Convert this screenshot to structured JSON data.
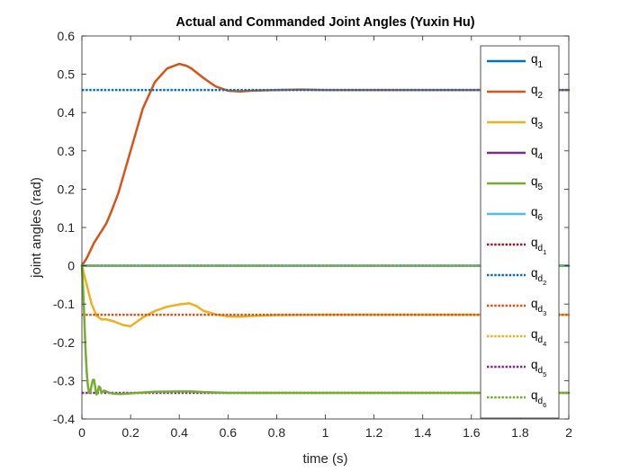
{
  "chart_data": {
    "type": "line",
    "title": "Actual and Commanded Joint Angles (Yuxin Hu)",
    "xlabel": "time (s)",
    "ylabel": "joint angles (rad)",
    "xlim": [
      0,
      2
    ],
    "ylim": [
      -0.4,
      0.6
    ],
    "xticks": [
      0,
      0.2,
      0.4,
      0.6,
      0.8,
      1,
      1.2,
      1.4,
      1.6,
      1.8,
      2
    ],
    "xtick_labels": [
      "0",
      "0.2",
      "0.4",
      "0.6",
      "0.8",
      "1",
      "1.2",
      "1.4",
      "1.6",
      "1.8",
      "2"
    ],
    "yticks": [
      -0.4,
      -0.3,
      -0.2,
      -0.1,
      0,
      0.1,
      0.2,
      0.3,
      0.4,
      0.5,
      0.6
    ],
    "ytick_labels": [
      "-0.4",
      "-0.3",
      "-0.2",
      "-0.1",
      "0",
      "0.1",
      "0.2",
      "0.3",
      "0.4",
      "0.5",
      "0.6"
    ],
    "grid": false,
    "legend_position": "top-right",
    "series": [
      {
        "name": "q1",
        "label": "q",
        "sub": "1",
        "subsub": "",
        "color": "#0072BD",
        "style": "solid",
        "x": [
          0,
          2
        ],
        "y": [
          0,
          0
        ]
      },
      {
        "name": "q2",
        "label": "q",
        "sub": "2",
        "subsub": "",
        "color": "#D95319",
        "style": "solid",
        "x": [
          0,
          0.02,
          0.05,
          0.08,
          0.1,
          0.12,
          0.15,
          0.2,
          0.25,
          0.3,
          0.35,
          0.4,
          0.43,
          0.45,
          0.5,
          0.55,
          0.6,
          0.65,
          0.7,
          0.8,
          0.9,
          1.0,
          1.2,
          1.5,
          2.0
        ],
        "y": [
          0,
          0.02,
          0.06,
          0.09,
          0.11,
          0.14,
          0.19,
          0.3,
          0.41,
          0.48,
          0.515,
          0.527,
          0.522,
          0.515,
          0.49,
          0.468,
          0.457,
          0.455,
          0.457,
          0.459,
          0.46,
          0.459,
          0.459,
          0.459,
          0.459
        ]
      },
      {
        "name": "q3",
        "label": "q",
        "sub": "3",
        "subsub": "",
        "color": "#EDB120",
        "style": "solid",
        "x": [
          0,
          0.02,
          0.04,
          0.06,
          0.08,
          0.1,
          0.13,
          0.17,
          0.2,
          0.25,
          0.3,
          0.35,
          0.4,
          0.44,
          0.47,
          0.5,
          0.55,
          0.6,
          0.65,
          0.7,
          0.8,
          1.0,
          1.5,
          2.0
        ],
        "y": [
          0,
          -0.05,
          -0.1,
          -0.13,
          -0.14,
          -0.14,
          -0.145,
          -0.155,
          -0.158,
          -0.135,
          -0.118,
          -0.107,
          -0.101,
          -0.098,
          -0.105,
          -0.118,
          -0.127,
          -0.132,
          -0.133,
          -0.131,
          -0.129,
          -0.128,
          -0.128,
          -0.128
        ]
      },
      {
        "name": "q4",
        "label": "q",
        "sub": "4",
        "subsub": "",
        "color": "#7E2F8E",
        "style": "solid",
        "x": [
          0,
          2
        ],
        "y": [
          0,
          0
        ]
      },
      {
        "name": "q5",
        "label": "q",
        "sub": "5",
        "subsub": "",
        "color": "#77AC30",
        "style": "solid",
        "x": [
          0,
          0.005,
          0.01,
          0.015,
          0.02,
          0.025,
          0.03,
          0.035,
          0.04,
          0.045,
          0.05,
          0.055,
          0.06,
          0.065,
          0.07,
          0.075,
          0.08,
          0.09,
          0.1,
          0.11,
          0.13,
          0.16,
          0.2,
          0.25,
          0.3,
          0.4,
          0.45,
          0.5,
          0.6,
          1.0,
          2.0
        ],
        "y": [
          0,
          -0.06,
          -0.14,
          -0.22,
          -0.28,
          -0.315,
          -0.332,
          -0.328,
          -0.312,
          -0.298,
          -0.298,
          -0.318,
          -0.336,
          -0.33,
          -0.315,
          -0.318,
          -0.332,
          -0.326,
          -0.328,
          -0.331,
          -0.334,
          -0.335,
          -0.333,
          -0.331,
          -0.329,
          -0.328,
          -0.328,
          -0.33,
          -0.332,
          -0.332,
          -0.332
        ]
      },
      {
        "name": "q6",
        "label": "q",
        "sub": "6",
        "subsub": "",
        "color": "#4DBEEE",
        "style": "solid",
        "x": [
          0,
          2
        ],
        "y": [
          0,
          0
        ]
      },
      {
        "name": "qd1",
        "label": "q",
        "sub": "d",
        "subsub": "1",
        "color": "#A2142F",
        "style": "dotted",
        "x": [
          0,
          2
        ],
        "y": [
          0,
          0
        ]
      },
      {
        "name": "qd2",
        "label": "q",
        "sub": "d",
        "subsub": "2",
        "color": "#0072BD",
        "style": "dotted",
        "x": [
          0,
          2
        ],
        "y": [
          0.459,
          0.459
        ]
      },
      {
        "name": "qd3",
        "label": "q",
        "sub": "d",
        "subsub": "3",
        "color": "#D95319",
        "style": "dotted",
        "x": [
          0,
          2
        ],
        "y": [
          -0.128,
          -0.128
        ]
      },
      {
        "name": "qd4",
        "label": "q",
        "sub": "d",
        "subsub": "4",
        "color": "#EDB120",
        "style": "dotted",
        "x": [
          0,
          2
        ],
        "y": [
          0,
          0
        ]
      },
      {
        "name": "qd5",
        "label": "q",
        "sub": "d",
        "subsub": "5",
        "color": "#7E2F8E",
        "style": "dotted",
        "x": [
          0,
          2
        ],
        "y": [
          -0.332,
          -0.332
        ]
      },
      {
        "name": "qd6",
        "label": "q",
        "sub": "d",
        "subsub": "6",
        "color": "#77AC30",
        "style": "dotted",
        "x": [
          0,
          2
        ],
        "y": [
          0,
          0
        ]
      }
    ]
  }
}
